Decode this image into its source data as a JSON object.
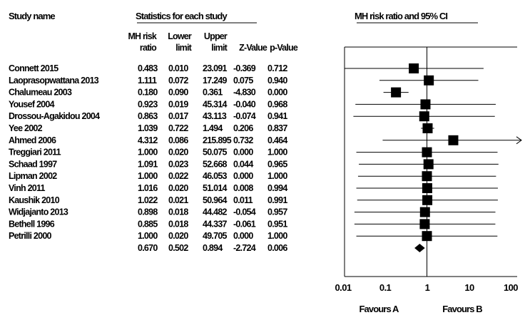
{
  "chart_data": {
    "type": "forest",
    "headers": {
      "study_name": "Study name",
      "statistics": "Statistics for each study",
      "plot_title": "MH risk ratio and 95% CI",
      "col_ratio": [
        "MH risk",
        "ratio"
      ],
      "col_lower": [
        "Lower",
        "limit"
      ],
      "col_upper": [
        "Upper",
        "limit"
      ],
      "col_z": "Z-Value",
      "col_p": "p-Value"
    },
    "studies": [
      {
        "name": "Connett 2015",
        "ratio": 0.483,
        "lower": 0.01,
        "upper": 23.091,
        "ratio_text": "0.483",
        "lower_text": "0.010",
        "upper_text": "23.091",
        "z_text": "-0.369",
        "p_text": "0.712",
        "upper_arrow": false
      },
      {
        "name": "Laoprasopwattana 2013",
        "ratio": 1.111,
        "lower": 0.072,
        "upper": 17.249,
        "ratio_text": "1.111",
        "lower_text": "0.072",
        "upper_text": "17.249",
        "z_text": "0.075",
        "p_text": "0.940",
        "upper_arrow": false
      },
      {
        "name": "Chalumeau 2003",
        "ratio": 0.18,
        "lower": 0.09,
        "upper": 0.361,
        "ratio_text": "0.180",
        "lower_text": "0.090",
        "upper_text": "0.361",
        "z_text": "-4.830",
        "p_text": "0.000",
        "upper_arrow": false
      },
      {
        "name": "Yousef 2004",
        "ratio": 0.923,
        "lower": 0.019,
        "upper": 45.314,
        "ratio_text": "0.923",
        "lower_text": "0.019",
        "upper_text": "45.314",
        "z_text": "-0.040",
        "p_text": "0.968",
        "upper_arrow": false
      },
      {
        "name": "Drossou-Agakidou 2004",
        "ratio": 0.863,
        "lower": 0.017,
        "upper": 43.113,
        "ratio_text": "0.863",
        "lower_text": "0.017",
        "upper_text": "43.113",
        "z_text": "-0.074",
        "p_text": "0.941",
        "upper_arrow": false
      },
      {
        "name": "Yee 2002",
        "ratio": 1.039,
        "lower": 0.722,
        "upper": 1.494,
        "ratio_text": "1.039",
        "lower_text": "0.722",
        "upper_text": "1.494",
        "z_text": "0.206",
        "p_text": "0.837",
        "upper_arrow": false
      },
      {
        "name": "Ahmed 2006",
        "ratio": 4.312,
        "lower": 0.086,
        "upper": 215.895,
        "ratio_text": "4.312",
        "lower_text": "0.086",
        "upper_text": "215.895",
        "z_text": "0.732",
        "p_text": "0.464",
        "upper_arrow": true
      },
      {
        "name": "Treggiari 2011",
        "ratio": 1.0,
        "lower": 0.02,
        "upper": 50.075,
        "ratio_text": "1.000",
        "lower_text": "0.020",
        "upper_text": "50.075",
        "z_text": "0.000",
        "p_text": "1.000",
        "upper_arrow": false
      },
      {
        "name": "Schaad 1997",
        "ratio": 1.091,
        "lower": 0.023,
        "upper": 52.668,
        "ratio_text": "1.091",
        "lower_text": "0.023",
        "upper_text": "52.668",
        "z_text": "0.044",
        "p_text": "0.965",
        "upper_arrow": false
      },
      {
        "name": "Lipman 2002",
        "ratio": 1.0,
        "lower": 0.022,
        "upper": 46.053,
        "ratio_text": "1.000",
        "lower_text": "0.022",
        "upper_text": "46.053",
        "z_text": "0.000",
        "p_text": "1.000",
        "upper_arrow": false
      },
      {
        "name": "Vinh 2011",
        "ratio": 1.016,
        "lower": 0.02,
        "upper": 51.014,
        "ratio_text": "1.016",
        "lower_text": "0.020",
        "upper_text": "51.014",
        "z_text": "0.008",
        "p_text": "0.994",
        "upper_arrow": false
      },
      {
        "name": "Kaushik 2010",
        "ratio": 1.022,
        "lower": 0.021,
        "upper": 50.964,
        "ratio_text": "1.022",
        "lower_text": "0.021",
        "upper_text": "50.964",
        "z_text": "0.011",
        "p_text": "0.991",
        "upper_arrow": false
      },
      {
        "name": "Widjajanto 2013",
        "ratio": 0.898,
        "lower": 0.018,
        "upper": 44.482,
        "ratio_text": "0.898",
        "lower_text": "0.018",
        "upper_text": "44.482",
        "z_text": "-0.054",
        "p_text": "0.957",
        "upper_arrow": false
      },
      {
        "name": "Bethell 1996",
        "ratio": 0.885,
        "lower": 0.018,
        "upper": 44.337,
        "ratio_text": "0.885",
        "lower_text": "0.018",
        "upper_text": "44.337",
        "z_text": "-0.061",
        "p_text": "0.951",
        "upper_arrow": false
      },
      {
        "name": "Petrilli 2000",
        "ratio": 1.0,
        "lower": 0.02,
        "upper": 49.705,
        "ratio_text": "1.000",
        "lower_text": "0.020",
        "upper_text": "49.705",
        "z_text": "0.000",
        "p_text": "1.000",
        "upper_arrow": false
      }
    ],
    "pooled": {
      "ratio": 0.67,
      "lower": 0.502,
      "upper": 0.894,
      "ratio_text": "0.670",
      "lower_text": "0.502",
      "upper_text": "0.894",
      "z_text": "-2.724",
      "p_text": "0.006"
    },
    "x_scale": "log",
    "x_range": [
      0.01,
      100
    ],
    "x_ticks": [
      0.01,
      0.1,
      1,
      10,
      100
    ],
    "x_tick_labels": [
      "0.01",
      "0.1",
      "1",
      "10",
      "100"
    ],
    "favours_left": "Favours A",
    "favours_right": "Favours B"
  }
}
